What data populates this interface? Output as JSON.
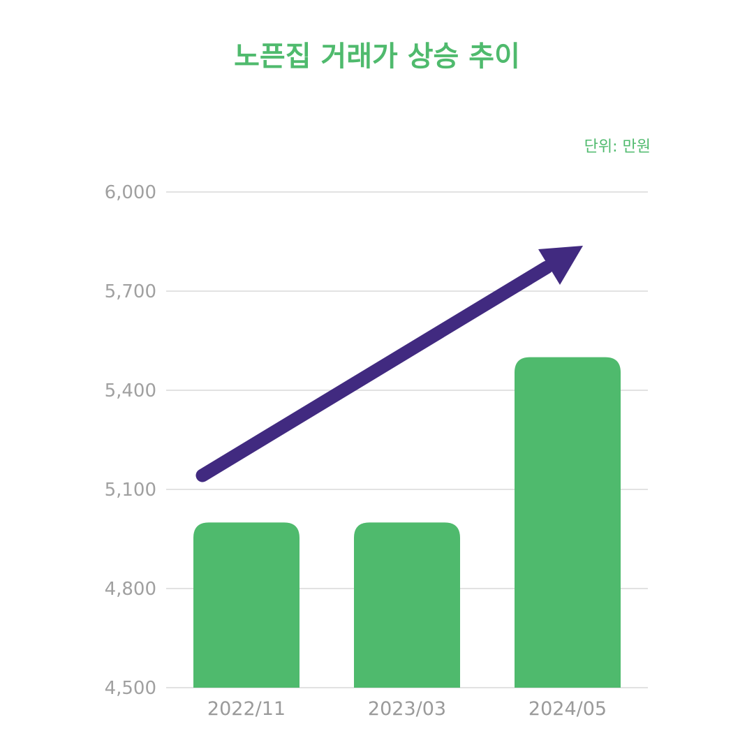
{
  "title": "노픈집 거래가 상승 추이",
  "unit": "단위: 만원",
  "colors": {
    "bar": "#4fba6d",
    "arrow": "#412a80",
    "title": "#4fba6d",
    "grid": "#d9d9d9",
    "tick_text": "#a0a0a0"
  },
  "chart_data": {
    "type": "bar",
    "title": "노픈집 거래가 상승 추이",
    "unit_note": "단위: 만원",
    "categories": [
      "2022/11",
      "2023/03",
      "2024/05"
    ],
    "values": [
      5000,
      5000,
      5500
    ],
    "ylim": [
      4500,
      6000
    ],
    "yticks": [
      4500,
      4800,
      5100,
      5400,
      5700,
      6000
    ],
    "ytick_labels": [
      "4,500",
      "4,800",
      "5,100",
      "5,400",
      "5,700",
      "6,000"
    ],
    "grid": true,
    "annotations": [
      {
        "type": "trend-arrow",
        "direction": "up"
      }
    ]
  }
}
